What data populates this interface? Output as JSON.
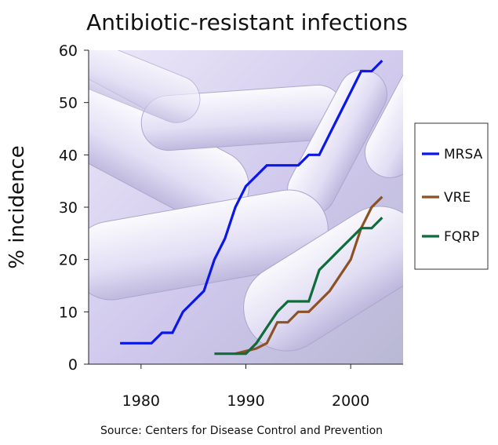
{
  "chart_data": {
    "type": "line",
    "title": "Antibiotic-resistant infections",
    "xlabel": "",
    "ylabel": "% incidence",
    "xlim": [
      1975,
      2005
    ],
    "ylim": [
      0,
      60
    ],
    "xticks": [
      1980,
      1990,
      2000
    ],
    "yticks": [
      0,
      10,
      20,
      30,
      40,
      50,
      60
    ],
    "grid": false,
    "legend": "right",
    "background": "microscope image of rod-shaped bacteria",
    "series": [
      {
        "name": "MRSA",
        "color": "#0a17e6",
        "x": [
          1978,
          1981,
          1982,
          1983,
          1984,
          1985,
          1986,
          1987,
          1988,
          1989,
          1990,
          1991,
          1992,
          1993,
          1994,
          1995,
          1996,
          1997,
          1998,
          1999,
          2000,
          2001,
          2002,
          2003
        ],
        "y": [
          4,
          4,
          6,
          6,
          10,
          12,
          14,
          20,
          24,
          30,
          34,
          36,
          38,
          38,
          38,
          38,
          40,
          40,
          44,
          48,
          52,
          56,
          56,
          58
        ]
      },
      {
        "name": "VRE",
        "color": "#8c5226",
        "x": [
          1989,
          1990,
          1991,
          1992,
          1993,
          1994,
          1995,
          1996,
          1997,
          1998,
          1999,
          2000,
          2001,
          2002,
          2003
        ],
        "y": [
          2,
          2.5,
          3,
          4,
          8,
          8,
          10,
          10,
          12,
          14,
          17,
          20,
          26,
          30,
          32
        ]
      },
      {
        "name": "FQRP",
        "color": "#0e6b3a",
        "x": [
          1987,
          1990,
          1991,
          1992,
          1993,
          1994,
          1995,
          1996,
          1997,
          1998,
          1999,
          2000,
          2001,
          2002,
          2003
        ],
        "y": [
          2,
          2,
          4,
          7,
          10,
          12,
          12,
          12,
          18,
          20,
          22,
          24,
          26,
          26,
          28
        ]
      }
    ],
    "source": "Source:  Centers for Disease Control and Prevention"
  }
}
